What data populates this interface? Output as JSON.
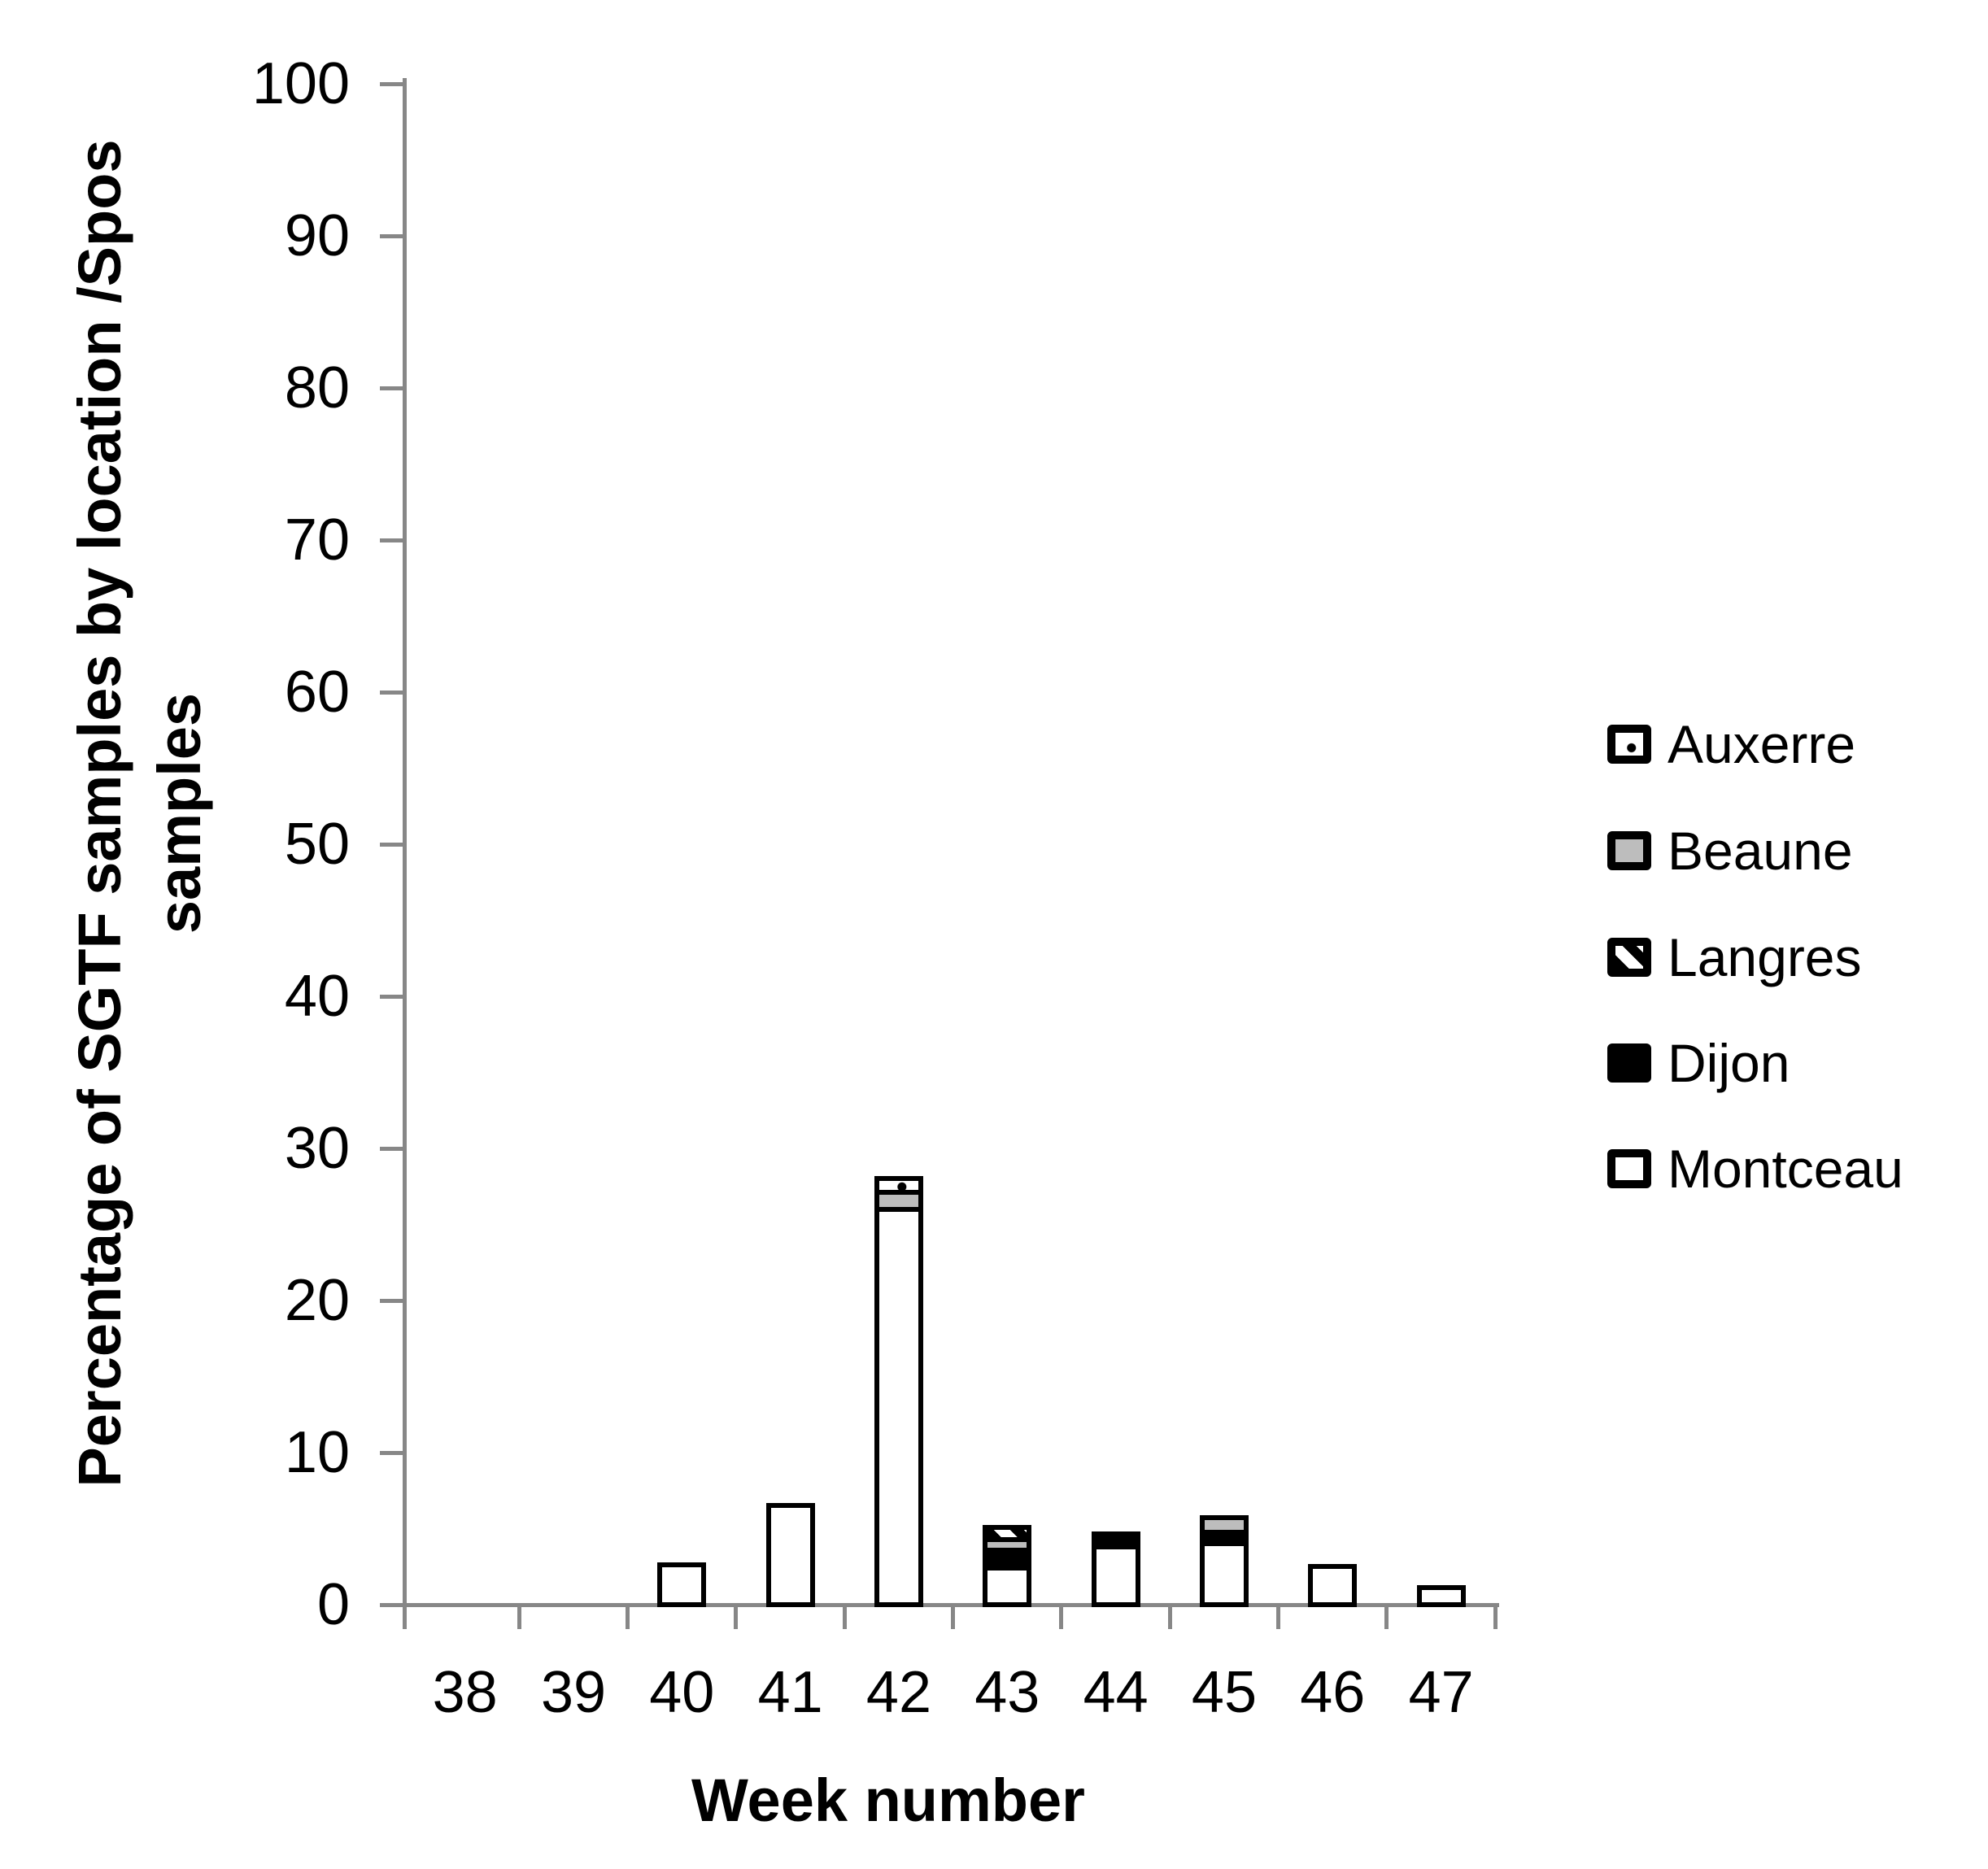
{
  "figure": {
    "background": "#ffffff",
    "axis_color": "#878787",
    "bar_border_color": "#000000"
  },
  "chart_data": {
    "type": "bar",
    "stacked": true,
    "title": "",
    "xlabel": "Week number",
    "ylabel": "Percentage of SGTF samples by location /Spos samples",
    "ylabel_lines": [
      "Percentage of SGTF samples by location /Spos",
      "samples"
    ],
    "categories": [
      "38",
      "39",
      "40",
      "41",
      "42",
      "43",
      "44",
      "45",
      "46",
      "47"
    ],
    "yticks": [
      "0",
      "10",
      "20",
      "30",
      "40",
      "50",
      "60",
      "70",
      "80",
      "90",
      "100"
    ],
    "ylim": [
      0,
      100
    ],
    "grid": false,
    "legend_position": "right",
    "legend_order": [
      "Auxerre",
      "Beaune",
      "Langres",
      "Dijon",
      "Montceau"
    ],
    "stack_order_bottom_to_top": [
      "Montceau",
      "Dijon",
      "Beaune",
      "Langres",
      "Auxerre"
    ],
    "series": [
      {
        "name": "Auxerre",
        "pattern": "white-dotted",
        "color": "#ffffff",
        "values": [
          0,
          0,
          0,
          0,
          0.6,
          0,
          0,
          0,
          0,
          0
        ]
      },
      {
        "name": "Beaune",
        "pattern": "solid-gray",
        "color": "#bdbdbd",
        "values": [
          0,
          0,
          0,
          0,
          1.1,
          0.7,
          0,
          0.65,
          0,
          0
        ]
      },
      {
        "name": "Langres",
        "pattern": "diagonal-hatch",
        "color": "#000000",
        "values": [
          0,
          0,
          0,
          0,
          0,
          0.45,
          0,
          0,
          0,
          0
        ]
      },
      {
        "name": "Dijon",
        "pattern": "solid-black",
        "color": "#000000",
        "values": [
          0,
          0,
          0,
          0,
          0,
          1.2,
          0.55,
          0.75,
          0,
          0
        ]
      },
      {
        "name": "Montceau",
        "pattern": "solid-white",
        "color": "#ffffff",
        "values": [
          0,
          0,
          2.3,
          6.2,
          26.0,
          2.4,
          3.8,
          4.0,
          2.2,
          0.8
        ]
      }
    ]
  }
}
